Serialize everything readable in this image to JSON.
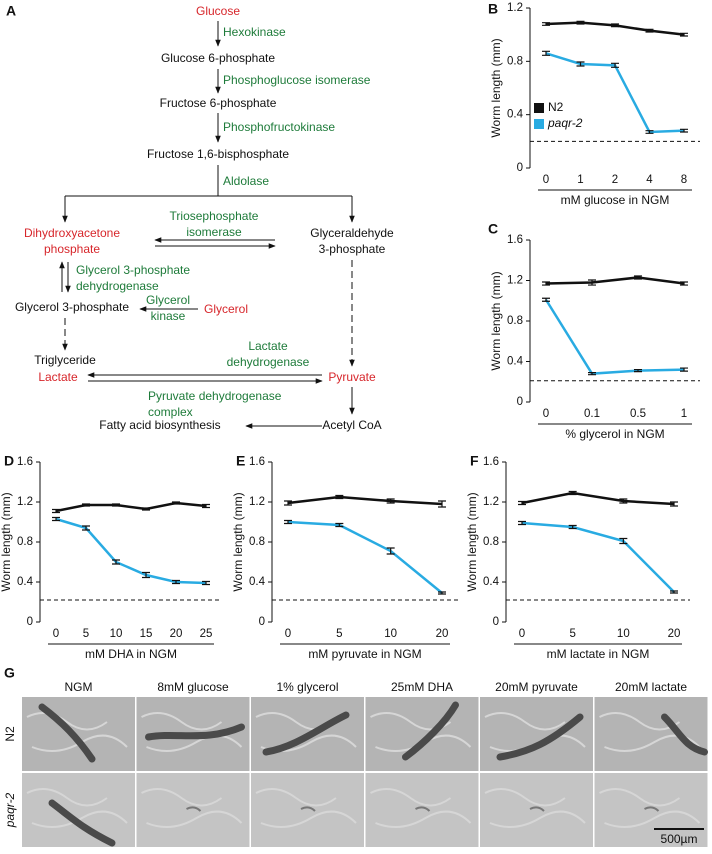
{
  "diagram": {
    "panel": "A",
    "nodes": [
      {
        "lines": [
          "Glucose"
        ],
        "color": "#d7262b"
      },
      {
        "lines": [
          "Hexokinase"
        ],
        "color": "#1e7b3a"
      },
      {
        "lines": [
          "Glucose 6-phosphate"
        ],
        "color": "#111111"
      },
      {
        "lines": [
          "Phosphoglucose isomerase"
        ],
        "color": "#1e7b3a"
      },
      {
        "lines": [
          "Fructose 6-phosphate"
        ],
        "color": "#111111"
      },
      {
        "lines": [
          "Phosphofructokinase"
        ],
        "color": "#1e7b3a"
      },
      {
        "lines": [
          "Fructose 1,6-bisphosphate"
        ],
        "color": "#111111"
      },
      {
        "lines": [
          "Aldolase"
        ],
        "color": "#1e7b3a"
      },
      {
        "lines": [
          "Dihydroxyacetone",
          "phosphate"
        ],
        "color": "#d7262b"
      },
      {
        "lines": [
          "Triosephosphate",
          "isomerase"
        ],
        "color": "#1e7b3a"
      },
      {
        "lines": [
          "Glyceraldehyde",
          "3-phosphate"
        ],
        "color": "#111111"
      },
      {
        "lines": [
          "Glycerol 3-phosphate",
          "dehydrogenase"
        ],
        "color": "#1e7b3a"
      },
      {
        "lines": [
          "Glycerol 3-phosphate"
        ],
        "color": "#111111"
      },
      {
        "lines": [
          "Glycerol",
          "kinase"
        ],
        "color": "#1e7b3a"
      },
      {
        "lines": [
          "Glycerol"
        ],
        "color": "#d7262b"
      },
      {
        "lines": [
          "Triglyceride"
        ],
        "color": "#111111"
      },
      {
        "lines": [
          "Lactate",
          "dehydrogenase"
        ],
        "color": "#1e7b3a"
      },
      {
        "lines": [
          "Lactate"
        ],
        "color": "#d7262b"
      },
      {
        "lines": [
          "Pyruvate"
        ],
        "color": "#d7262b"
      },
      {
        "lines": [
          "Pyruvate dehydrogenase",
          "complex"
        ],
        "color": "#1e7b3a"
      },
      {
        "lines": [
          "Fatty acid biosynthesis"
        ],
        "color": "#111111"
      },
      {
        "lines": [
          "Acetyl CoA"
        ],
        "color": "#111111"
      }
    ]
  },
  "chart_data": [
    {
      "type": "line",
      "panel": "B",
      "ylabel": "Worm length (mm)",
      "xlabel": "mM glucose in NGM",
      "categories": [
        "0",
        "1",
        "2",
        "4",
        "8"
      ],
      "ylim": [
        0,
        1.2
      ],
      "yticks": [
        0,
        0.4,
        0.8,
        1.2
      ],
      "reference_line": 0.2,
      "legend": "center left",
      "series": [
        {
          "name": "N2",
          "color": "#111111",
          "values": [
            1.08,
            1.09,
            1.07,
            1.03,
            1.0
          ],
          "errors": [
            0.01,
            0.01,
            0.01,
            0.01,
            0.01
          ]
        },
        {
          "name": "paqr-2",
          "color": "#29abe2",
          "values": [
            0.86,
            0.78,
            0.77,
            0.27,
            0.28
          ],
          "errors": [
            0.015,
            0.015,
            0.015,
            0.01,
            0.01
          ]
        }
      ]
    },
    {
      "type": "line",
      "panel": "C",
      "ylabel": "Worm length (mm)",
      "xlabel": "% glycerol in NGM",
      "categories": [
        "0",
        "0.1",
        "0.5",
        "1"
      ],
      "ylim": [
        0,
        1.6
      ],
      "yticks": [
        0,
        0.4,
        0.8,
        1.2,
        1.6
      ],
      "reference_line": 0.21,
      "series": [
        {
          "color": "#111111",
          "values": [
            1.17,
            1.18,
            1.23,
            1.17
          ],
          "errors": [
            0.015,
            0.025,
            0.015,
            0.015
          ]
        },
        {
          "color": "#29abe2",
          "values": [
            1.01,
            0.28,
            0.31,
            0.32
          ],
          "errors": [
            0.015,
            0.01,
            0.01,
            0.015
          ]
        }
      ]
    },
    {
      "type": "line",
      "panel": "D",
      "ylabel": "Worm length (mm)",
      "xlabel": "mM DHA in NGM",
      "categories": [
        "0",
        "5",
        "10",
        "15",
        "20",
        "25"
      ],
      "ylim": [
        0,
        1.6
      ],
      "yticks": [
        0,
        0.4,
        0.8,
        1.2,
        1.6
      ],
      "reference_line": 0.22,
      "series": [
        {
          "color": "#111111",
          "values": [
            1.11,
            1.17,
            1.17,
            1.13,
            1.19,
            1.16
          ],
          "errors": [
            0.015,
            0.01,
            0.01,
            0.01,
            0.01,
            0.015
          ]
        },
        {
          "color": "#29abe2",
          "values": [
            1.03,
            0.94,
            0.6,
            0.47,
            0.4,
            0.39
          ],
          "errors": [
            0.015,
            0.02,
            0.02,
            0.025,
            0.015,
            0.015
          ]
        }
      ]
    },
    {
      "type": "line",
      "panel": "E",
      "ylabel": "Worm length (mm)",
      "xlabel": "mM pyruvate in NGM",
      "categories": [
        "0",
        "5",
        "10",
        "20"
      ],
      "ylim": [
        0,
        1.6
      ],
      "yticks": [
        0,
        0.4,
        0.8,
        1.2,
        1.6
      ],
      "reference_line": 0.22,
      "series": [
        {
          "color": "#111111",
          "values": [
            1.19,
            1.25,
            1.21,
            1.18
          ],
          "errors": [
            0.02,
            0.015,
            0.02,
            0.03
          ]
        },
        {
          "color": "#29abe2",
          "values": [
            1.0,
            0.97,
            0.71,
            0.29
          ],
          "errors": [
            0.015,
            0.015,
            0.03,
            0.01
          ]
        }
      ]
    },
    {
      "type": "line",
      "panel": "F",
      "ylabel": "Worm length (mm)",
      "xlabel": "mM lactate in NGM",
      "categories": [
        "0",
        "5",
        "10",
        "20"
      ],
      "ylim": [
        0,
        1.6
      ],
      "yticks": [
        0,
        0.4,
        0.8,
        1.2,
        1.6
      ],
      "reference_line": 0.22,
      "series": [
        {
          "color": "#111111",
          "values": [
            1.19,
            1.29,
            1.21,
            1.18
          ],
          "errors": [
            0.015,
            0.015,
            0.02,
            0.02
          ]
        },
        {
          "color": "#29abe2",
          "values": [
            0.99,
            0.95,
            0.81,
            0.3
          ],
          "errors": [
            0.015,
            0.015,
            0.025,
            0.01
          ]
        }
      ]
    }
  ],
  "micrographs": {
    "panel": "G",
    "columns": [
      "NGM",
      "8mM glucose",
      "1% glycerol",
      "25mM DHA",
      "20mM pyruvate",
      "20mM lactate"
    ],
    "rows": [
      "N2",
      "paqr-2"
    ],
    "scale_bar": "500µm"
  }
}
